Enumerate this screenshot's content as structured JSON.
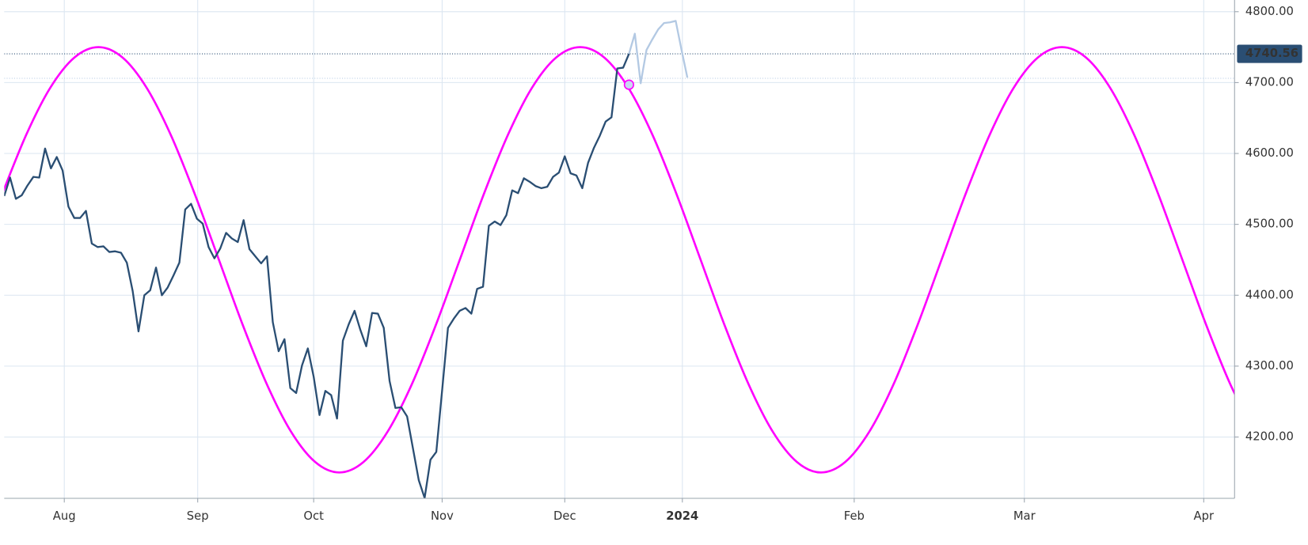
{
  "chart_data": {
    "type": "line",
    "xlim": [
      0,
      210.71
    ],
    "ylim": [
      4113.5,
      4816.5
    ],
    "grid": true,
    "xticks": [
      {
        "value": 10.29,
        "label": "Aug"
      },
      {
        "value": 33.14,
        "label": "Sep"
      },
      {
        "value": 53,
        "label": "Oct"
      },
      {
        "value": 75,
        "label": "Nov"
      },
      {
        "value": 96,
        "label": "Dec"
      },
      {
        "value": 116.14,
        "label": "2024",
        "bold": true
      },
      {
        "value": 145.57,
        "label": "Feb"
      },
      {
        "value": 174.71,
        "label": "Mar"
      },
      {
        "value": 205.43,
        "label": "Apr"
      }
    ],
    "yticks": [
      {
        "value": 4200,
        "label": "4200.00"
      },
      {
        "value": 4300,
        "label": "4300.00"
      },
      {
        "value": 4400,
        "label": "4400.00"
      },
      {
        "value": 4500,
        "label": "4500.00"
      },
      {
        "value": 4600,
        "label": "4600.00"
      },
      {
        "value": 4700,
        "label": "4700.00"
      },
      {
        "value": 4800,
        "label": "4800.00"
      }
    ],
    "series": [
      {
        "color": "#ff00ff",
        "x": [
          -0.36,
          3.77,
          7.89,
          12.02,
          16.14,
          20.27,
          24.39,
          28.52,
          32.64,
          36.77,
          40.89,
          45.02,
          49.14,
          53.27,
          57.39,
          61.52,
          65.64,
          69.77,
          73.89,
          78.02,
          82.14,
          86.27,
          90.39,
          94.52,
          98.64,
          102.77,
          106.89,
          111.02,
          115.14,
          119.27,
          123.39,
          127.52,
          131.64,
          135.77,
          139.89,
          144.02,
          148.14,
          152.27,
          156.39,
          160.52,
          164.64,
          168.77,
          172.89,
          177.02,
          181.14,
          185.27,
          189.39,
          193.52,
          197.64,
          201.77,
          205.89,
          210.02,
          214.14
        ],
        "values": [
          4542.7,
          4626.3,
          4692.7,
          4735.3,
          4750,
          4735.3,
          4692.7,
          4626.3,
          4542.7,
          4450,
          4357.3,
          4273.7,
          4207.3,
          4164.7,
          4150,
          4164.7,
          4207.3,
          4273.7,
          4357.3,
          4450,
          4542.7,
          4626.3,
          4692.7,
          4735.3,
          4750,
          4735.3,
          4692.7,
          4626.3,
          4542.7,
          4450,
          4357.3,
          4273.7,
          4207.3,
          4164.7,
          4150,
          4164.7,
          4207.3,
          4273.7,
          4357.3,
          4450,
          4542.7,
          4626.3,
          4692.7,
          4735.3,
          4750,
          4735.3,
          4692.7,
          4626.3,
          4542.7,
          4450,
          4357.3,
          4273.7,
          4207.3
        ]
      },
      {
        "color": "#2a4e73",
        "x": [
          0,
          1,
          2,
          3,
          4,
          5,
          6,
          7,
          8,
          9,
          10,
          11,
          12,
          13,
          14,
          15,
          16,
          17,
          18,
          19,
          20,
          21,
          22,
          23,
          24,
          25,
          26,
          27,
          28,
          29,
          30,
          31,
          32,
          33,
          34,
          35,
          36,
          37,
          38,
          39,
          40,
          41,
          42,
          43,
          44,
          45,
          46,
          47,
          48,
          49,
          50,
          51,
          52,
          53,
          54,
          55,
          56,
          57,
          58,
          59,
          60,
          61,
          62,
          63,
          64,
          65,
          66,
          67,
          68,
          69,
          70,
          71,
          72,
          73,
          74,
          75,
          76,
          77,
          78,
          79,
          80,
          81,
          82,
          83,
          84,
          85,
          86,
          87,
          88,
          89,
          90,
          91,
          92,
          93,
          94,
          95,
          96,
          97,
          98,
          99,
          100,
          101,
          102,
          103,
          104,
          105,
          106,
          107
        ],
        "values": [
          4540,
          4566,
          4536,
          4541,
          4555,
          4567,
          4566,
          4607,
          4579,
          4595,
          4576,
          4525,
          4509,
          4509,
          4519,
          4473,
          4468,
          4469,
          4461,
          4462,
          4460,
          4446,
          4406,
          4349,
          4400,
          4407,
          4439,
          4400,
          4411,
          4428,
          4446,
          4521,
          4529,
          4508,
          4501,
          4468,
          4452,
          4466,
          4488,
          4480,
          4475,
          4506,
          4465,
          4455,
          4445,
          4455,
          4362,
          4321,
          4338,
          4269,
          4262,
          4301,
          4325,
          4285,
          4231,
          4265,
          4259,
          4226,
          4336,
          4359,
          4378,
          4351,
          4328,
          4375,
          4374,
          4354,
          4279,
          4241,
          4242,
          4229,
          4184,
          4139,
          4114,
          4168,
          4179,
          4266,
          4354,
          4367,
          4378,
          4382,
          4374,
          4409,
          4412,
          4498,
          4504,
          4499,
          4513,
          4548,
          4544,
          4565,
          4560,
          4554,
          4551,
          4553,
          4567,
          4573,
          4596,
          4572,
          4569,
          4551,
          4587,
          4608,
          4625,
          4645,
          4651,
          4720,
          4721,
          4740.56
        ]
      },
      {
        "color": "#b3c9e3",
        "x": [
          107,
          108,
          109,
          110,
          111,
          112,
          113,
          114,
          115,
          116,
          117
        ],
        "values": [
          4740.56,
          4769,
          4699,
          4746,
          4761,
          4775,
          4784,
          4785,
          4787,
          4746,
          4707
        ]
      }
    ],
    "price_lines": [
      {
        "value": 4740.56,
        "color": "#2a4e73",
        "show_label": true
      },
      {
        "value": 4706,
        "color": "#b3c9e3",
        "show_label": false
      }
    ],
    "highlight": {
      "x": 107,
      "value": 4697,
      "color": "#ff00ff"
    }
  }
}
